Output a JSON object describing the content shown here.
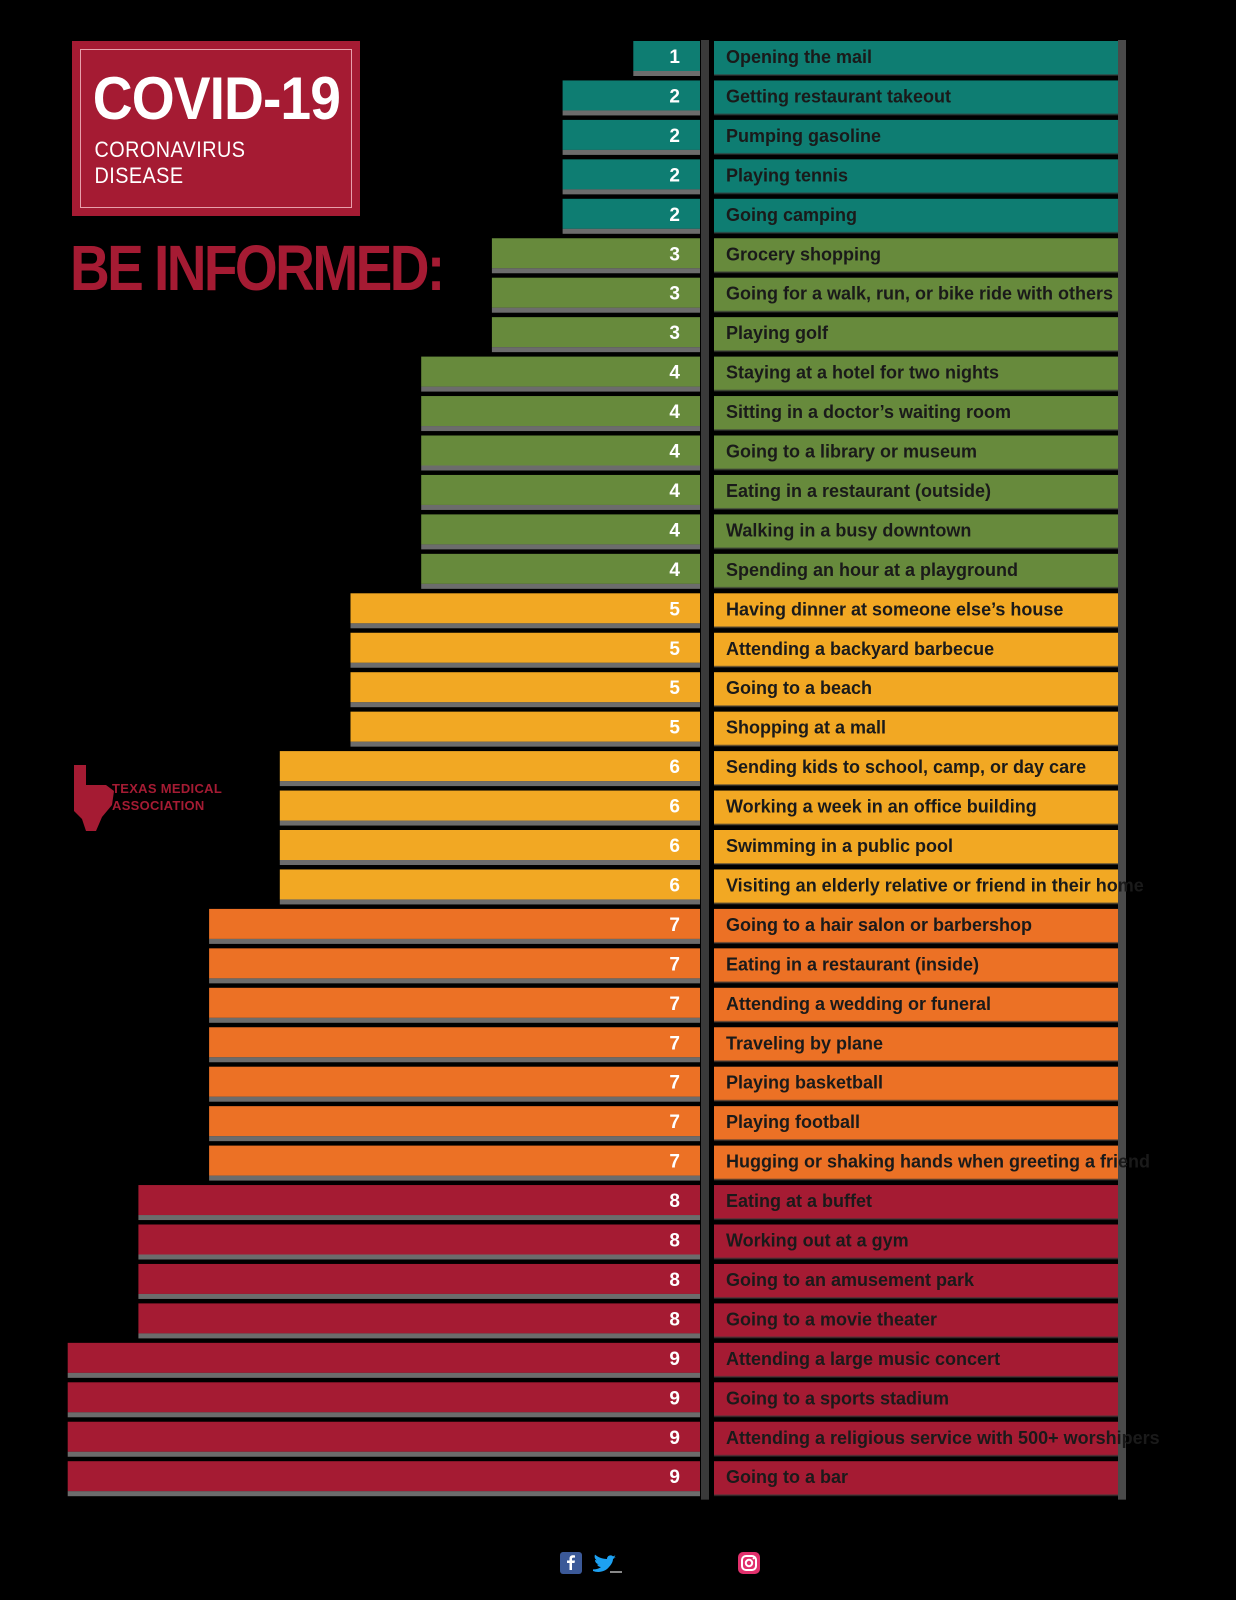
{
  "badge": {
    "title": "COVID-19",
    "subtitle": "CORONAVIRUS DISEASE"
  },
  "heading": "BE INFORMED:",
  "logo": {
    "line1": "TEXAS MEDICAL",
    "line2": "ASSOCIATION",
    "icon": "texas-map-icon",
    "color": "#a51b33"
  },
  "social": {
    "icons": [
      "facebook-icon",
      "twitter-icon",
      "instagram-icon"
    ]
  },
  "colors": {
    "1": "#0e7d72",
    "2": "#0e7d72",
    "3": "#678a3c",
    "4": "#678a3c",
    "5": "#f2a823",
    "6": "#f2a823",
    "7": "#ec7125",
    "8": "#a51b33",
    "9": "#a51b33"
  },
  "chart_data": {
    "type": "bar",
    "orientation": "horizontal",
    "xlim": [
      0,
      9
    ],
    "categories": [
      "Opening the mail",
      "Getting restaurant takeout",
      "Pumping gasoline",
      "Playing tennis",
      "Going camping",
      "Grocery shopping",
      "Going for a walk, run, or bike ride with others",
      "Playing golf",
      "Staying at a hotel for two nights",
      "Sitting in a doctor’s waiting room",
      "Going to a library or museum",
      "Eating in a restaurant (outside)",
      "Walking in a busy downtown",
      "Spending an hour at a playground",
      "Having dinner at someone else’s house",
      "Attending a backyard barbecue",
      "Going to a beach",
      "Shopping at a mall",
      "Sending kids to school, camp, or day care",
      "Working a week in an office building",
      "Swimming in a public pool",
      "Visiting an elderly relative or friend in their home",
      "Going to a hair salon or barbershop",
      "Eating in a restaurant (inside)",
      "Attending a wedding or funeral",
      "Traveling by plane",
      "Playing basketball",
      "Playing football",
      "Hugging or shaking hands when greeting a friend",
      "Eating at a buffet",
      "Working out at a gym",
      "Going to an amusement park",
      "Going to a movie theater",
      "Attending a large music concert",
      "Going to a sports stadium",
      "Attending a religious service with 500+ worshipers",
      "Going to a bar"
    ],
    "values": [
      1,
      2,
      2,
      2,
      2,
      3,
      3,
      3,
      4,
      4,
      4,
      4,
      4,
      4,
      5,
      5,
      5,
      5,
      6,
      6,
      6,
      6,
      7,
      7,
      7,
      7,
      7,
      7,
      7,
      8,
      8,
      8,
      8,
      9,
      9,
      9,
      9
    ]
  }
}
